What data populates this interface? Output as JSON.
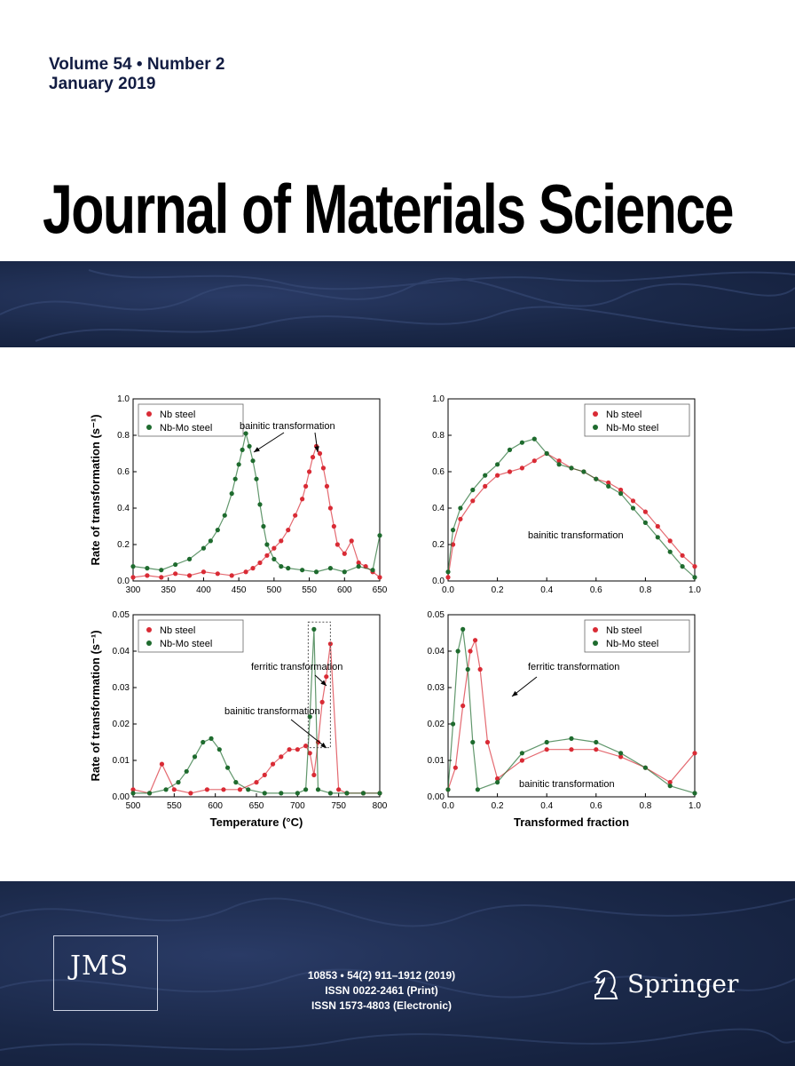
{
  "cover": {
    "issue_line1": "Volume 54 • Number 2",
    "issue_line2": "January 2019",
    "journal_title": "Journal of Materials Science",
    "logo_text": "JMS",
    "imprint_line1": "10853 • 54(2) 911–1912 (2019)",
    "imprint_line2": "ISSN 0022-2461 (Print)",
    "imprint_line3": "ISSN 1573-4803 (Electronic)",
    "publisher": "Springer",
    "colors": {
      "band": "#1a2848",
      "nb_steel": "#d92b35",
      "nbmo_steel": "#1e6b2e"
    }
  },
  "chart_data": [
    {
      "type": "scatter",
      "ylabel": "Rate of transformation (s⁻¹)",
      "xlabel": "",
      "xlim": [
        300,
        650
      ],
      "ylim": [
        0.0,
        1.0
      ],
      "xticks": [
        "300",
        "350",
        "400",
        "450",
        "500",
        "550",
        "600",
        "650"
      ],
      "yticks": [
        "0.0",
        "0.2",
        "0.4",
        "0.6",
        "0.8",
        "1.0"
      ],
      "legend": [
        "Nb steel",
        "Nb-Mo steel"
      ],
      "legend_position": "top-left",
      "annotation": "bainitic transformation",
      "series": [
        {
          "name": "Nb steel",
          "x": [
            300,
            320,
            340,
            360,
            380,
            400,
            420,
            440,
            460,
            470,
            480,
            490,
            500,
            510,
            520,
            530,
            540,
            545,
            550,
            555,
            560,
            565,
            570,
            575,
            580,
            585,
            590,
            600,
            610,
            620,
            630,
            640,
            650
          ],
          "y": [
            0.02,
            0.03,
            0.02,
            0.04,
            0.03,
            0.05,
            0.04,
            0.03,
            0.05,
            0.07,
            0.1,
            0.14,
            0.18,
            0.22,
            0.28,
            0.36,
            0.45,
            0.52,
            0.6,
            0.68,
            0.74,
            0.7,
            0.62,
            0.52,
            0.4,
            0.3,
            0.2,
            0.15,
            0.22,
            0.1,
            0.08,
            0.05,
            0.02
          ]
        },
        {
          "name": "Nb-Mo steel",
          "x": [
            300,
            320,
            340,
            360,
            380,
            400,
            410,
            420,
            430,
            440,
            445,
            450,
            455,
            460,
            465,
            470,
            475,
            480,
            485,
            490,
            500,
            510,
            520,
            540,
            560,
            580,
            600,
            620,
            640,
            650
          ],
          "y": [
            0.08,
            0.07,
            0.06,
            0.09,
            0.12,
            0.18,
            0.22,
            0.28,
            0.36,
            0.48,
            0.56,
            0.64,
            0.72,
            0.81,
            0.74,
            0.66,
            0.56,
            0.42,
            0.3,
            0.2,
            0.12,
            0.08,
            0.07,
            0.06,
            0.05,
            0.07,
            0.05,
            0.08,
            0.06,
            0.25
          ]
        }
      ]
    },
    {
      "type": "scatter",
      "xlabel": "",
      "ylabel": "",
      "xlim": [
        0.0,
        1.0
      ],
      "ylim": [
        0.0,
        1.0
      ],
      "xticks": [
        "0.0",
        "0.2",
        "0.4",
        "0.6",
        "0.8",
        "1.0"
      ],
      "yticks": [
        "0.0",
        "0.2",
        "0.4",
        "0.6",
        "0.8",
        "1.0"
      ],
      "legend": [
        "Nb steel",
        "Nb-Mo steel"
      ],
      "legend_position": "top-right",
      "annotation": "bainitic transformation",
      "series": [
        {
          "name": "Nb steel",
          "x": [
            0.0,
            0.02,
            0.05,
            0.1,
            0.15,
            0.2,
            0.25,
            0.3,
            0.35,
            0.4,
            0.45,
            0.5,
            0.55,
            0.6,
            0.65,
            0.7,
            0.75,
            0.8,
            0.85,
            0.9,
            0.95,
            1.0
          ],
          "y": [
            0.02,
            0.2,
            0.34,
            0.44,
            0.52,
            0.58,
            0.6,
            0.62,
            0.66,
            0.7,
            0.66,
            0.62,
            0.6,
            0.56,
            0.54,
            0.5,
            0.44,
            0.38,
            0.3,
            0.22,
            0.14,
            0.08
          ]
        },
        {
          "name": "Nb-Mo steel",
          "x": [
            0.0,
            0.02,
            0.05,
            0.1,
            0.15,
            0.2,
            0.25,
            0.3,
            0.35,
            0.4,
            0.45,
            0.5,
            0.55,
            0.6,
            0.65,
            0.7,
            0.75,
            0.8,
            0.85,
            0.9,
            0.95,
            1.0
          ],
          "y": [
            0.05,
            0.28,
            0.4,
            0.5,
            0.58,
            0.64,
            0.72,
            0.76,
            0.78,
            0.7,
            0.64,
            0.62,
            0.6,
            0.56,
            0.52,
            0.48,
            0.4,
            0.32,
            0.24,
            0.16,
            0.08,
            0.02
          ]
        }
      ]
    },
    {
      "type": "scatter",
      "ylabel": "Rate of transformation (s⁻¹)",
      "xlabel": "Temperature (°C)",
      "xlim": [
        500,
        800
      ],
      "ylim": [
        0.0,
        0.05
      ],
      "xticks": [
        "500",
        "550",
        "600",
        "650",
        "700",
        "750",
        "800"
      ],
      "yticks": [
        "0.00",
        "0.01",
        "0.02",
        "0.03",
        "0.04",
        "0.05"
      ],
      "legend": [
        "Nb steel",
        "Nb-Mo steel"
      ],
      "legend_position": "top-left",
      "annotations": [
        "ferritic transformation",
        "bainitic transformation"
      ],
      "series": [
        {
          "name": "Nb steel",
          "x": [
            500,
            520,
            535,
            550,
            570,
            590,
            610,
            630,
            650,
            660,
            670,
            680,
            690,
            700,
            710,
            715,
            720,
            725,
            730,
            735,
            740,
            750,
            760,
            780,
            800
          ],
          "y": [
            0.002,
            0.001,
            0.009,
            0.002,
            0.001,
            0.002,
            0.002,
            0.002,
            0.004,
            0.006,
            0.009,
            0.011,
            0.013,
            0.013,
            0.014,
            0.012,
            0.006,
            0.015,
            0.026,
            0.033,
            0.042,
            0.002,
            0.001,
            0.001,
            0.001
          ]
        },
        {
          "name": "Nb-Mo steel",
          "x": [
            500,
            520,
            540,
            555,
            565,
            575,
            585,
            595,
            605,
            615,
            625,
            640,
            660,
            680,
            700,
            710,
            715,
            720,
            725,
            740,
            760,
            780,
            800
          ],
          "y": [
            0.001,
            0.001,
            0.002,
            0.004,
            0.007,
            0.011,
            0.015,
            0.016,
            0.013,
            0.008,
            0.004,
            0.002,
            0.001,
            0.001,
            0.001,
            0.002,
            0.022,
            0.046,
            0.002,
            0.001,
            0.001,
            0.001,
            0.001
          ]
        }
      ]
    },
    {
      "type": "scatter",
      "xlabel": "Transformed fraction",
      "ylabel": "",
      "xlim": [
        0.0,
        1.0
      ],
      "ylim": [
        0.0,
        0.05
      ],
      "xticks": [
        "0.0",
        "0.2",
        "0.4",
        "0.6",
        "0.8",
        "1.0"
      ],
      "yticks": [
        "0.00",
        "0.01",
        "0.02",
        "0.03",
        "0.04",
        "0.05"
      ],
      "legend": [
        "Nb steel",
        "Nb-Mo steel"
      ],
      "legend_position": "top-right",
      "annotations": [
        "ferritic transformation",
        "bainitic transformation"
      ],
      "series": [
        {
          "name": "Nb steel",
          "x": [
            0.0,
            0.03,
            0.06,
            0.09,
            0.11,
            0.13,
            0.16,
            0.2,
            0.3,
            0.4,
            0.5,
            0.6,
            0.7,
            0.8,
            0.9,
            1.0
          ],
          "y": [
            0.002,
            0.008,
            0.025,
            0.04,
            0.043,
            0.035,
            0.015,
            0.005,
            0.01,
            0.013,
            0.013,
            0.013,
            0.011,
            0.008,
            0.004,
            0.012
          ]
        },
        {
          "name": "Nb-Mo steel",
          "x": [
            0.0,
            0.02,
            0.04,
            0.06,
            0.08,
            0.1,
            0.12,
            0.2,
            0.3,
            0.4,
            0.5,
            0.6,
            0.7,
            0.8,
            0.9,
            1.0
          ],
          "y": [
            0.002,
            0.02,
            0.04,
            0.046,
            0.035,
            0.015,
            0.002,
            0.004,
            0.012,
            0.015,
            0.016,
            0.015,
            0.012,
            0.008,
            0.003,
            0.001
          ]
        }
      ]
    }
  ]
}
